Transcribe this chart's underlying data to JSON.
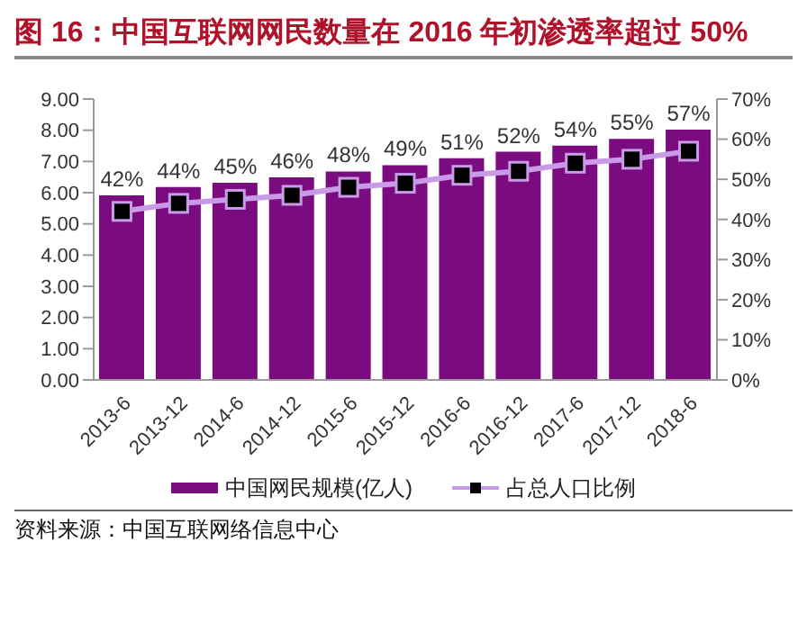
{
  "chart_data": {
    "type": "bar",
    "title": "图 16：中国互联网网民数量在 2016 年初渗透率超过 50%",
    "categories": [
      "2013-6",
      "2013-12",
      "2014-6",
      "2014-12",
      "2015-6",
      "2015-12",
      "2016-6",
      "2016-12",
      "2017-6",
      "2017-12",
      "2018-6"
    ],
    "series": [
      {
        "name": "中国网民规模(亿人)",
        "color": "#7b0c7f",
        "values": [
          5.91,
          6.18,
          6.32,
          6.49,
          6.68,
          6.88,
          7.1,
          7.31,
          7.51,
          7.72,
          8.02
        ]
      },
      {
        "name": "占总人口比例",
        "type": "line",
        "axis": "y2",
        "color": "#c89ae8",
        "marker": "square",
        "values": [
          42,
          44,
          45,
          46,
          48,
          49,
          51,
          52,
          54,
          55,
          57
        ],
        "value_labels": [
          "42%",
          "44%",
          "45%",
          "46%",
          "48%",
          "49%",
          "51%",
          "52%",
          "54%",
          "55%",
          "57%"
        ]
      }
    ],
    "ylim": [
      0,
      9
    ],
    "yticks": [
      {
        "value": 0,
        "label": "0.00"
      },
      {
        "value": 1,
        "label": "1.00"
      },
      {
        "value": 2,
        "label": "2.00"
      },
      {
        "value": 3,
        "label": "3.00"
      },
      {
        "value": 4,
        "label": "4.00"
      },
      {
        "value": 5,
        "label": "5.00"
      },
      {
        "value": 6,
        "label": "6.00"
      },
      {
        "value": 7,
        "label": "7.00"
      },
      {
        "value": 8,
        "label": "8.00"
      },
      {
        "value": 9,
        "label": "9.00"
      }
    ],
    "y2lim": [
      0,
      70
    ],
    "y2ticks": [
      {
        "value": 0,
        "label": "0%"
      },
      {
        "value": 10,
        "label": "10%"
      },
      {
        "value": 20,
        "label": "20%"
      },
      {
        "value": 30,
        "label": "30%"
      },
      {
        "value": 40,
        "label": "40%"
      },
      {
        "value": 50,
        "label": "50%"
      },
      {
        "value": 60,
        "label": "60%"
      },
      {
        "value": 70,
        "label": "70%"
      }
    ],
    "grid": false,
    "legend": "bottom",
    "annotations": [
      "资料来源：中国互联网络信息中心"
    ]
  }
}
